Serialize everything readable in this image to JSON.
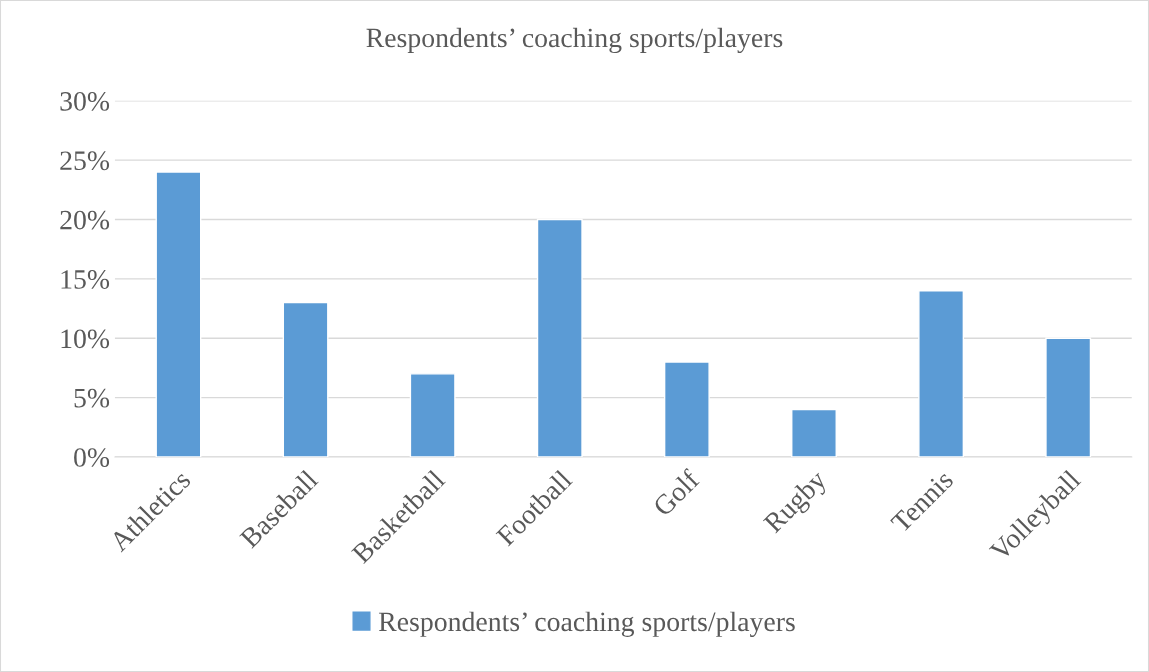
{
  "chart_data": {
    "type": "bar",
    "title": "Respondents’ coaching sports/players",
    "categories": [
      "Athletics",
      "Baseball",
      "Basketball",
      "Football",
      "Golf",
      "Rugby",
      "Tennis",
      "Volleyball"
    ],
    "series": [
      {
        "name": "Respondents’ coaching sports/players",
        "color": "#5b9bd5",
        "values": [
          24,
          13,
          7,
          20,
          8,
          4,
          14,
          10
        ]
      }
    ],
    "ylim": [
      0,
      30
    ],
    "yticks": [
      {
        "value": 0,
        "label": "0%"
      },
      {
        "value": 5,
        "label": "5%"
      },
      {
        "value": 10,
        "label": "10%"
      },
      {
        "value": 15,
        "label": "15%"
      },
      {
        "value": 20,
        "label": "20%"
      },
      {
        "value": 25,
        "label": "25%"
      },
      {
        "value": 30,
        "label": "30%"
      }
    ],
    "grid": "y",
    "legend": "bottom"
  }
}
